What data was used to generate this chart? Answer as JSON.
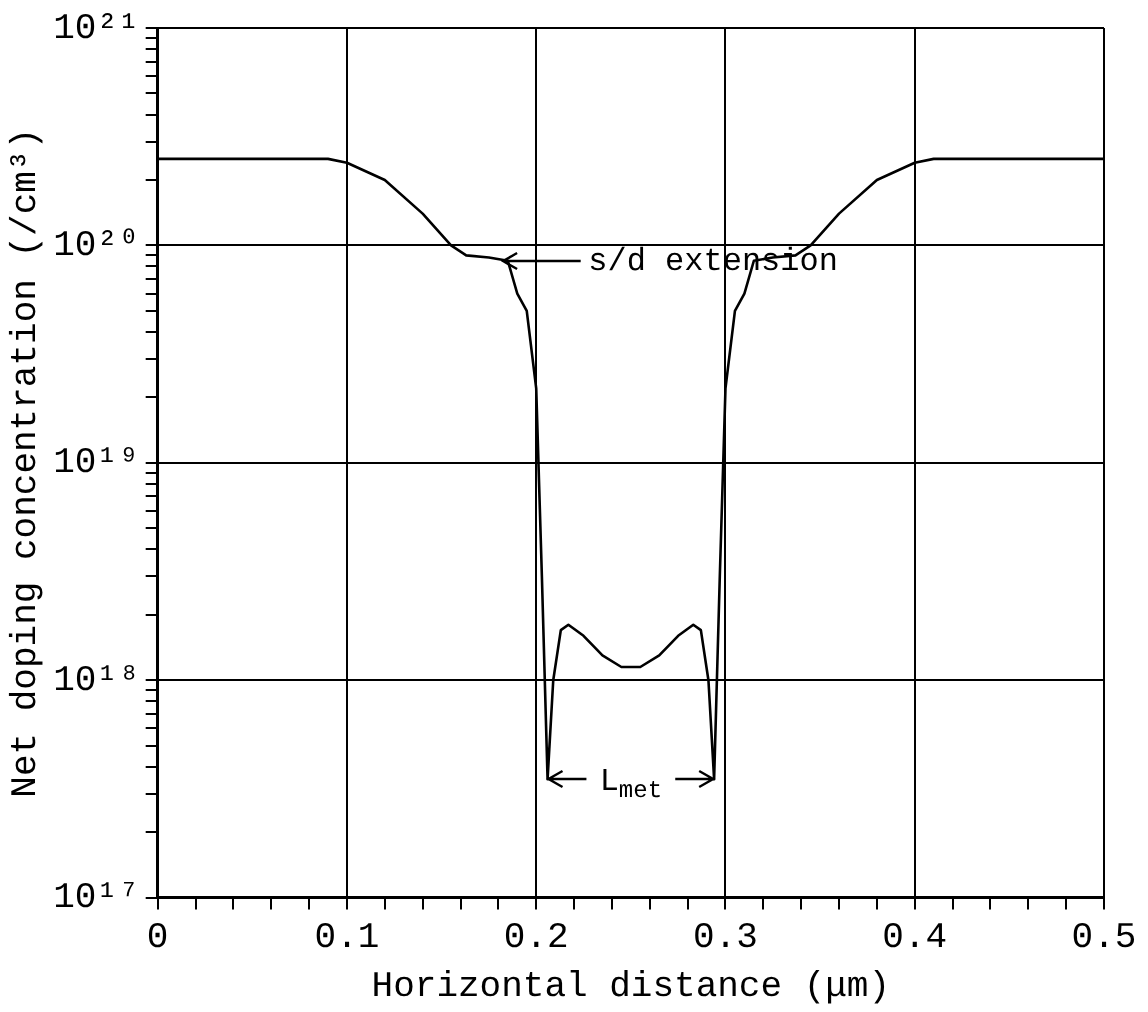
{
  "chart_data": {
    "type": "line",
    "xlabel": "Horizontal distance (μm)",
    "ylabel": "Net doping concentration (/cm³)",
    "log": "y",
    "grid": true,
    "legend": false,
    "marker": "none",
    "line_style": "solid",
    "xlim": [
      0,
      0.5
    ],
    "ylim": [
      1e+17,
      1e+21
    ],
    "xticks": [
      0,
      {
        "value": 0.02,
        "label": null
      },
      {
        "value": 0.04,
        "label": null
      },
      {
        "value": 0.06,
        "label": null
      },
      {
        "value": 0.08,
        "label": null
      },
      0.1,
      {
        "value": 0.12,
        "label": null
      },
      {
        "value": 0.14,
        "label": null
      },
      {
        "value": 0.16,
        "label": null
      },
      {
        "value": 0.18,
        "label": null
      },
      0.2,
      {
        "value": 0.22,
        "label": null
      },
      {
        "value": 0.24,
        "label": null
      },
      {
        "value": 0.26,
        "label": null
      },
      {
        "value": 0.28,
        "label": null
      },
      0.3,
      {
        "value": 0.32,
        "label": null
      },
      {
        "value": 0.34,
        "label": null
      },
      {
        "value": 0.36,
        "label": null
      },
      {
        "value": 0.38,
        "label": null
      },
      0.4,
      {
        "value": 0.42,
        "label": null
      },
      {
        "value": 0.44,
        "label": null
      },
      {
        "value": 0.46,
        "label": null
      },
      {
        "value": 0.48,
        "label": null
      },
      0.5
    ],
    "yticks": [
      {
        "value": 1e+17,
        "label": "10¹⁷"
      },
      {
        "value": 2e+17,
        "label": null
      },
      {
        "value": 3e+17,
        "label": null
      },
      {
        "value": 4e+17,
        "label": null
      },
      {
        "value": 5e+17,
        "label": null
      },
      {
        "value": 6e+17,
        "label": null
      },
      {
        "value": 7e+17,
        "label": null
      },
      {
        "value": 8e+17,
        "label": null
      },
      {
        "value": 9e+17,
        "label": null
      },
      {
        "value": 1e+18,
        "label": "10¹⁸"
      },
      {
        "value": 2e+18,
        "label": null
      },
      {
        "value": 3e+18,
        "label": null
      },
      {
        "value": 4e+18,
        "label": null
      },
      {
        "value": 5e+18,
        "label": null
      },
      {
        "value": 6e+18,
        "label": null
      },
      {
        "value": 7e+18,
        "label": null
      },
      {
        "value": 8e+18,
        "label": null
      },
      {
        "value": 9e+18,
        "label": null
      },
      {
        "value": 1e+19,
        "label": "10¹⁹"
      },
      {
        "value": 2e+19,
        "label": null
      },
      {
        "value": 3e+19,
        "label": null
      },
      {
        "value": 4e+19,
        "label": null
      },
      {
        "value": 5e+19,
        "label": null
      },
      {
        "value": 6e+19,
        "label": null
      },
      {
        "value": 7e+19,
        "label": null
      },
      {
        "value": 8e+19,
        "label": null
      },
      {
        "value": 9e+19,
        "label": null
      },
      {
        "value": 1e+20,
        "label": "10²⁰"
      },
      {
        "value": 2e+20,
        "label": null
      },
      {
        "value": 3e+20,
        "label": null
      },
      {
        "value": 4e+20,
        "label": null
      },
      {
        "value": 5e+20,
        "label": null
      },
      {
        "value": 6e+20,
        "label": null
      },
      {
        "value": 7e+20,
        "label": null
      },
      {
        "value": 8e+20,
        "label": null
      },
      {
        "value": 9e+20,
        "label": null
      },
      {
        "value": 1e+21,
        "label": "10²¹"
      }
    ],
    "annotations": [
      "s/d extension",
      "L$_{met}$"
    ],
    "series": [
      {
        "color": "#000000",
        "x": [
          0,
          0.05,
          0.09,
          0.1,
          0.12,
          0.14,
          0.155,
          0.163,
          0.175,
          0.185,
          0.19,
          0.195,
          0.2,
          0.203,
          0.206,
          0.209,
          0.213,
          0.217,
          0.225,
          0.235,
          0.245,
          0.255,
          0.265,
          0.275,
          0.283,
          0.287,
          0.291,
          0.294,
          0.297,
          0.3,
          0.305,
          0.31,
          0.315,
          0.325,
          0.337,
          0.345,
          0.36,
          0.38,
          0.4,
          0.41,
          0.5
        ],
        "values": [
          2.5e+20,
          2.5e+20,
          2.5e+20,
          2.4e+20,
          2e+20,
          1.4e+20,
          1e+20,
          9e+19,
          8.8e+19,
          8.5e+19,
          6e+19,
          5e+19,
          2.2e+19,
          3e+18,
          3.5e+17,
          1e+18,
          1.7e+18,
          1.8e+18,
          1.6e+18,
          1.3e+18,
          1.15e+18,
          1.15e+18,
          1.3e+18,
          1.6e+18,
          1.8e+18,
          1.7e+18,
          1e+18,
          3.5e+17,
          3e+18,
          2.2e+19,
          5e+19,
          6e+19,
          8.5e+19,
          8.8e+19,
          9e+19,
          1e+20,
          1.4e+20,
          2e+20,
          2.4e+20,
          2.5e+20,
          2.5e+20
        ]
      }
    ]
  }
}
